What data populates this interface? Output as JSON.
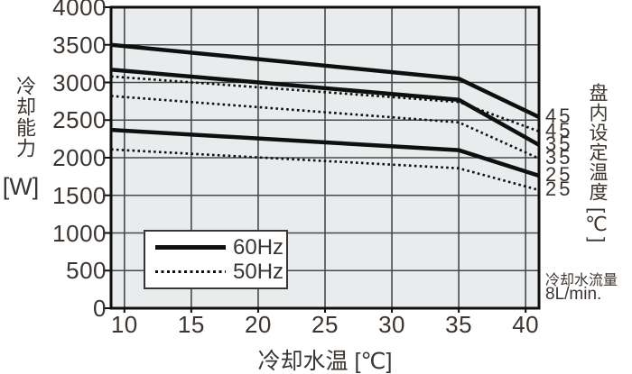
{
  "colors": {
    "page_bg": "#ffffff",
    "plot_bg": "#e8eced",
    "grid": "#46494b",
    "line": "#0f0f0f",
    "text": "#3b3531",
    "legend_bg": "#ffffff"
  },
  "y_axis": {
    "title": "冷却能力",
    "unit": "[W]"
  },
  "x_axis": {
    "title": "冷却水温 [℃]"
  },
  "right_axis": {
    "title": "盘内设定温度",
    "unit": "[℃]"
  },
  "note": {
    "flow_label": "冷却水流量",
    "flow_value": "8L/min."
  },
  "legend": {
    "items": [
      {
        "label": "60Hz",
        "style": "solid"
      },
      {
        "label": "50Hz",
        "style": "dotted"
      }
    ]
  },
  "chart_data": {
    "type": "line",
    "title": "",
    "xlabel": "冷却水温 [℃]",
    "ylabel": "冷却能力 [W]",
    "right_label": "盘内设定温度 [℃]",
    "note": "冷却水流量 8L/min.",
    "grid": true,
    "legend_position": "inside-lower-left",
    "xlim": [
      9,
      41
    ],
    "ylim": [
      0,
      4000
    ],
    "x_ticks": [
      10,
      15,
      20,
      25,
      30,
      35,
      40
    ],
    "y_ticks": [
      0,
      500,
      1000,
      1500,
      2000,
      2500,
      3000,
      3500,
      4000
    ],
    "x": [
      9,
      35,
      41
    ],
    "series": [
      {
        "name": "60Hz 盘内设定温度45℃",
        "freq": "60Hz",
        "set_temp": 45,
        "line": "solid",
        "end_label": "45",
        "values": [
          3500,
          3050,
          2540
        ]
      },
      {
        "name": "50Hz 盘内设定温度45℃",
        "freq": "50Hz",
        "set_temp": 45,
        "line": "dotted",
        "end_label": "45",
        "values": [
          3080,
          2740,
          2350
        ]
      },
      {
        "name": "60Hz 盘内设定温度35℃",
        "freq": "60Hz",
        "set_temp": 35,
        "line": "solid",
        "end_label": "35",
        "values": [
          3170,
          2770,
          2170
        ]
      },
      {
        "name": "50Hz 盘内设定温度35℃",
        "freq": "50Hz",
        "set_temp": 35,
        "line": "dotted",
        "end_label": "35",
        "values": [
          2820,
          2470,
          1990
        ]
      },
      {
        "name": "60Hz 盘内设定温度25℃",
        "freq": "60Hz",
        "set_temp": 25,
        "line": "solid",
        "end_label": "25",
        "values": [
          2370,
          2100,
          1760
        ]
      },
      {
        "name": "50Hz 盘内设定温度25℃",
        "freq": "50Hz",
        "set_temp": 25,
        "line": "dotted",
        "end_label": "25",
        "values": [
          2110,
          1860,
          1570
        ]
      }
    ]
  }
}
